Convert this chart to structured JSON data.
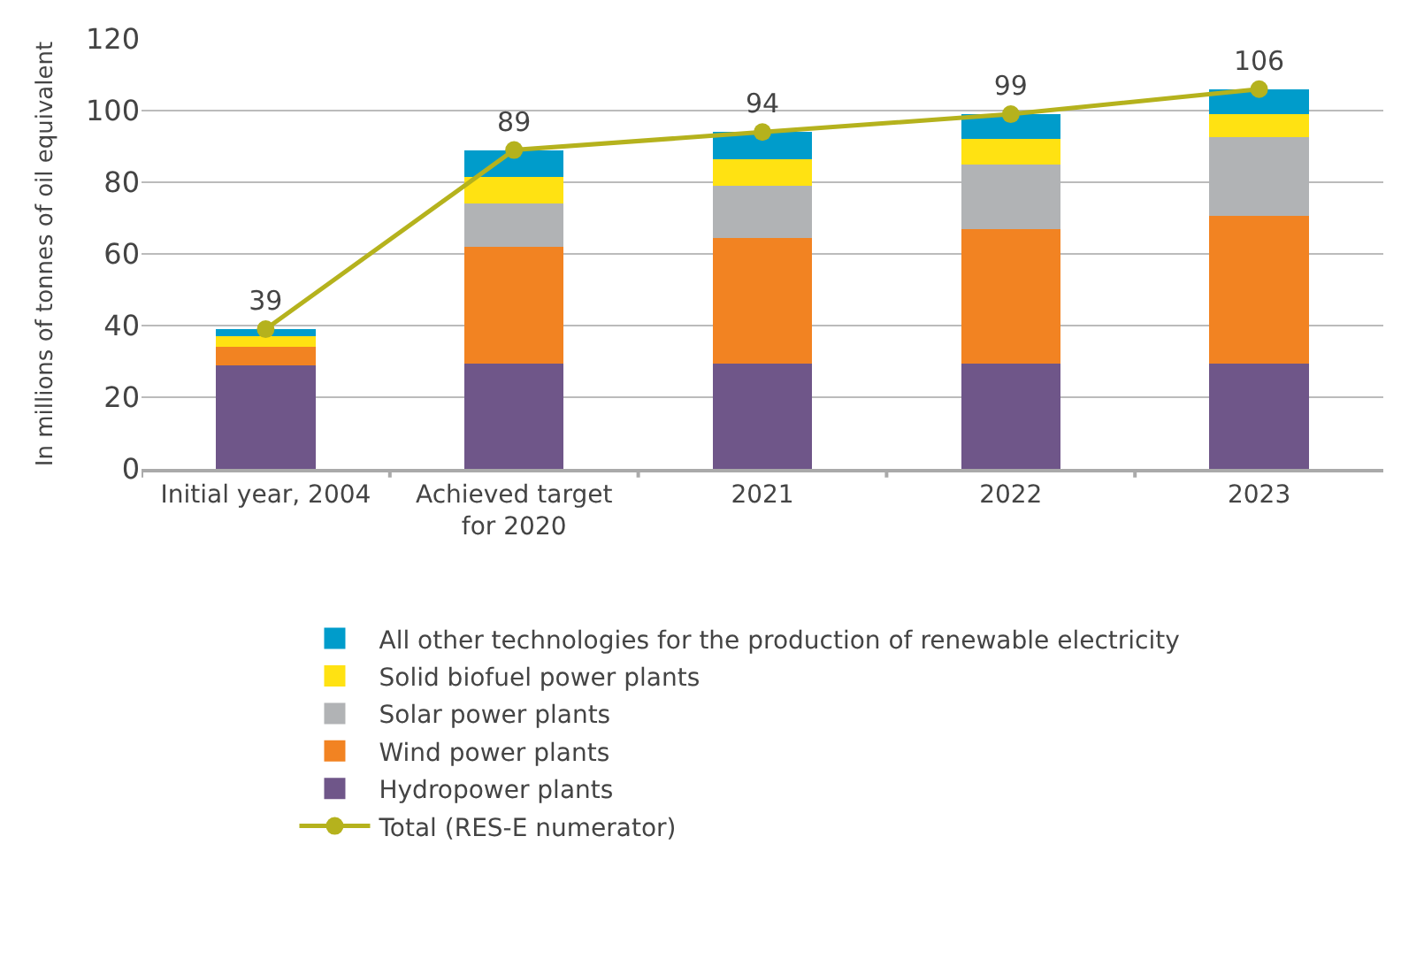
{
  "chart_data": {
    "type": "bar",
    "stacked": true,
    "ylabel": "In millions of tonnes of oil equivalent",
    "categories": [
      "Initial year, 2004",
      "Achieved target\nfor 2020",
      "2021",
      "2022",
      "2023"
    ],
    "ylim": [
      0,
      120
    ],
    "yticks": [
      0,
      20,
      40,
      60,
      80,
      100,
      120
    ],
    "grid": "y",
    "legend": "bottom",
    "series": [
      {
        "name": "Hydropower plants",
        "color": "#6f5689",
        "values": [
          29,
          29.5,
          29.5,
          29.5,
          29.5
        ]
      },
      {
        "name": "Wind power plants",
        "color": "#f28322",
        "values": [
          5,
          32.5,
          35,
          37.5,
          41
        ]
      },
      {
        "name": "Solar power plants",
        "color": "#b1b3b5",
        "values": [
          0,
          12,
          14.5,
          18,
          22
        ]
      },
      {
        "name": "Solid biofuel power plants",
        "color": "#ffe212",
        "values": [
          3,
          7.5,
          7.5,
          7,
          6.5
        ]
      },
      {
        "name": "All other technologies for the production of renewable electricity",
        "color": "#009ccb",
        "values": [
          2,
          7.5,
          7.5,
          7,
          7
        ]
      },
      {
        "name": "Total (RES-E numerator)",
        "type": "line",
        "marker": "circle",
        "color": "#b5b21d",
        "values": [
          39,
          89,
          94,
          99,
          106
        ],
        "value_labels": [
          "39",
          "89",
          "94",
          "99",
          "106"
        ]
      }
    ]
  }
}
